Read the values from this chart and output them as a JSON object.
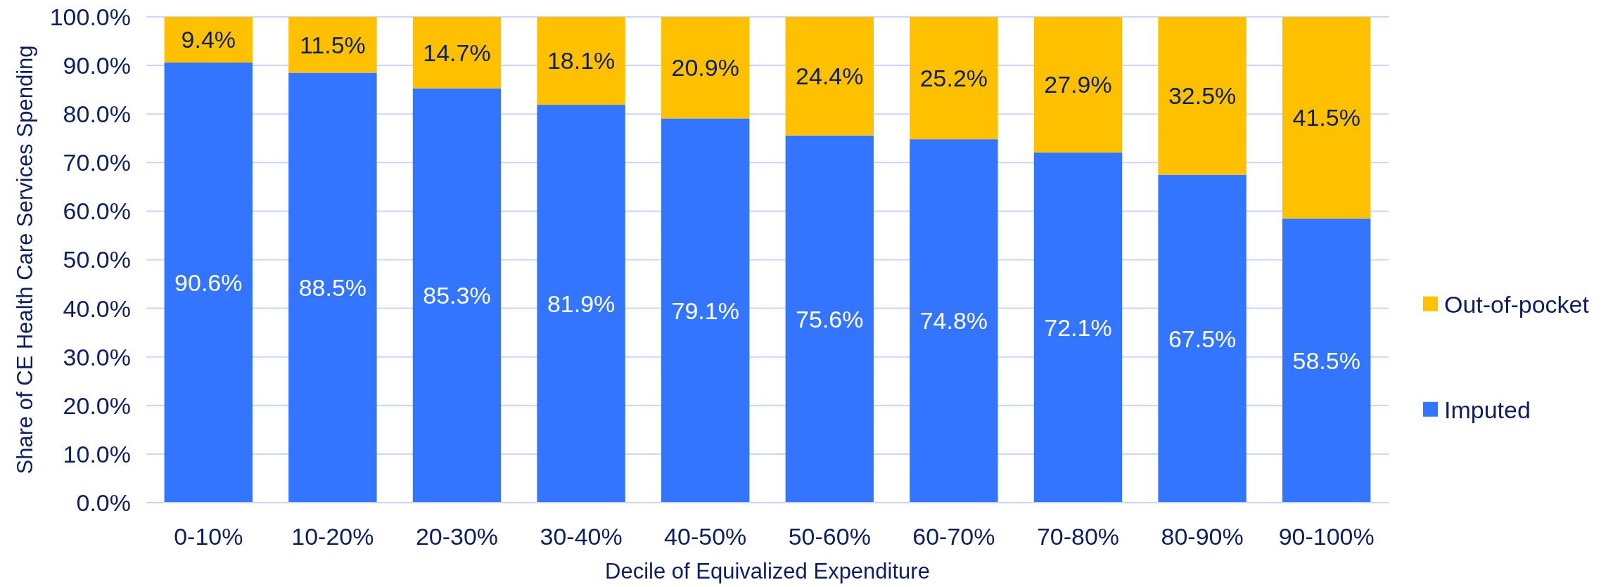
{
  "chart_data": {
    "type": "bar",
    "stacked": true,
    "xlabel": "Decile of Equivalized Expenditure",
    "ylabel": "Share of CE Health Care Services Spending",
    "categories": [
      "0-10%",
      "10-20%",
      "20-30%",
      "30-40%",
      "40-50%",
      "50-60%",
      "60-70%",
      "70-80%",
      "80-90%",
      "90-100%"
    ],
    "series": [
      {
        "name": "Imputed",
        "color": "#3375ff",
        "values": [
          90.6,
          88.5,
          85.3,
          81.9,
          79.1,
          75.6,
          74.8,
          72.1,
          67.5,
          58.5
        ],
        "value_labels": [
          "90.6%",
          "88.5%",
          "85.3%",
          "81.9%",
          "79.1%",
          "75.6%",
          "74.8%",
          "72.1%",
          "67.5%",
          "58.5%"
        ]
      },
      {
        "name": "Out-of-pocket",
        "color": "#ffc000",
        "values": [
          9.4,
          11.5,
          14.7,
          18.1,
          20.9,
          24.4,
          25.2,
          27.9,
          32.5,
          41.5
        ],
        "value_labels": [
          "9.4%",
          "11.5%",
          "14.7%",
          "18.1%",
          "20.9%",
          "24.4%",
          "25.2%",
          "27.9%",
          "32.5%",
          "41.5%"
        ]
      }
    ],
    "ylim": [
      0,
      100
    ],
    "yticks": [
      {
        "value": 0,
        "label": "0.0%"
      },
      {
        "value": 10,
        "label": "10.0%"
      },
      {
        "value": 20,
        "label": "20.0%"
      },
      {
        "value": 30,
        "label": "30.0%"
      },
      {
        "value": 40,
        "label": "40.0%"
      },
      {
        "value": 50,
        "label": "50.0%"
      },
      {
        "value": 60,
        "label": "60.0%"
      },
      {
        "value": 70,
        "label": "70.0%"
      },
      {
        "value": 80,
        "label": "80.0%"
      },
      {
        "value": 90,
        "label": "90.0%"
      },
      {
        "value": 100,
        "label": "100.0%"
      }
    ],
    "grid": "y",
    "legend": "right"
  }
}
